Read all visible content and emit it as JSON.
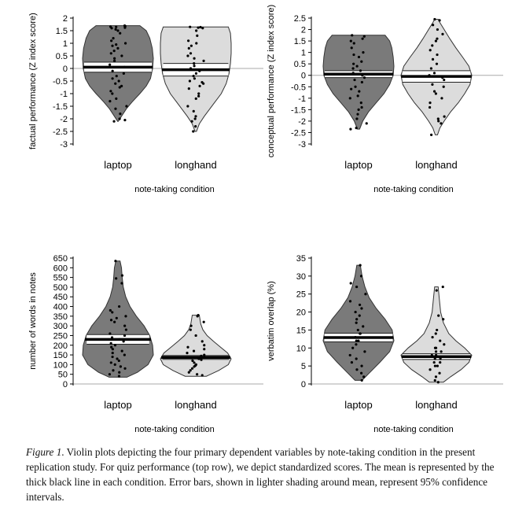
{
  "chart_data": [
    {
      "type": "violin",
      "title": "",
      "xlabel": "note-taking condition",
      "ylabel": "factual performance (Z index score)",
      "ylim": [
        -3,
        2
      ],
      "yticks": [
        -3,
        -2.5,
        -2,
        -1.5,
        -1,
        -0.5,
        0,
        0.5,
        1,
        1.5,
        2
      ],
      "ytick_labels": [
        "-3",
        "-2.5",
        "-2",
        "-1.5",
        "-1",
        "-0.5",
        "0",
        "0.5",
        "1",
        "1.5",
        "2"
      ],
      "reference_line": 0,
      "categories": [
        "laptop",
        "longhand"
      ],
      "series": [
        {
          "name": "laptop",
          "color": "#7a7a7a",
          "min": -2.1,
          "max": 1.7,
          "mean": 0.05,
          "ci": [
            -0.15,
            0.25
          ],
          "profile": [
            [
              -2.1,
              0.01
            ],
            [
              -1.9,
              0.1
            ],
            [
              -1.6,
              0.24
            ],
            [
              -1.3,
              0.42
            ],
            [
              -1.0,
              0.62
            ],
            [
              -0.7,
              0.8
            ],
            [
              -0.4,
              0.92
            ],
            [
              0.0,
              0.98
            ],
            [
              0.4,
              1.0
            ],
            [
              0.8,
              0.97
            ],
            [
              1.2,
              0.9
            ],
            [
              1.5,
              0.8
            ],
            [
              1.7,
              0.62
            ]
          ],
          "points": [
            1.7,
            1.68,
            1.66,
            1.65,
            1.62,
            1.6,
            1.55,
            1.5,
            1.4,
            1.2,
            1.1,
            1.0,
            0.95,
            0.9,
            0.8,
            0.7,
            0.6,
            0.5,
            0.4,
            0.3,
            0.15,
            0.05,
            -0.1,
            -0.2,
            -0.3,
            -0.4,
            -0.5,
            -0.6,
            -0.7,
            -0.75,
            -0.9,
            -1.0,
            -1.2,
            -1.3,
            -1.5,
            -1.6,
            -1.8,
            -2.0,
            -2.05,
            -2.1
          ]
        },
        {
          "name": "longhand",
          "color": "#dcdcdc",
          "min": -2.5,
          "max": 1.65,
          "mean": -0.05,
          "ci": [
            -0.3,
            0.2
          ],
          "profile": [
            [
              -2.5,
              0.02
            ],
            [
              -2.2,
              0.1
            ],
            [
              -1.9,
              0.24
            ],
            [
              -1.6,
              0.4
            ],
            [
              -1.3,
              0.56
            ],
            [
              -1.0,
              0.72
            ],
            [
              -0.6,
              0.86
            ],
            [
              -0.2,
              0.94
            ],
            [
              0.2,
              0.98
            ],
            [
              0.6,
              1.0
            ],
            [
              1.0,
              1.0
            ],
            [
              1.4,
              0.98
            ],
            [
              1.65,
              0.92
            ]
          ],
          "points": [
            1.65,
            1.64,
            1.62,
            1.6,
            1.5,
            1.3,
            1.1,
            1.0,
            0.9,
            0.8,
            0.6,
            0.5,
            0.4,
            0.3,
            0.2,
            0.1,
            0.0,
            -0.1,
            -0.2,
            -0.3,
            -0.4,
            -0.5,
            -0.55,
            -0.6,
            -0.7,
            -0.8,
            -1.0,
            -1.1,
            -1.2,
            -1.5,
            -1.7,
            -1.9,
            -2.0,
            -2.1,
            -2.3,
            -2.5
          ]
        }
      ]
    },
    {
      "type": "violin",
      "title": "",
      "xlabel": "note-taking condition",
      "ylabel": "conceptual performance (Z index score)",
      "ylim": [
        -3,
        2.5
      ],
      "yticks": [
        -3,
        -2.5,
        -2,
        -1.5,
        -1,
        -0.5,
        0,
        0.5,
        1,
        1.5,
        2,
        2.5
      ],
      "ytick_labels": [
        "-3",
        "-2.5",
        "-2",
        "-1.5",
        "-1",
        "-0.5",
        "0",
        "0.5",
        "1",
        "1.5",
        "2",
        "2.5"
      ],
      "reference_line": 0,
      "categories": [
        "laptop",
        "longhand"
      ],
      "series": [
        {
          "name": "laptop",
          "color": "#7a7a7a",
          "min": -2.35,
          "max": 1.75,
          "mean": 0.05,
          "ci": [
            -0.1,
            0.2
          ],
          "profile": [
            [
              -2.35,
              0.03
            ],
            [
              -2.0,
              0.12
            ],
            [
              -1.6,
              0.28
            ],
            [
              -1.2,
              0.5
            ],
            [
              -0.8,
              0.72
            ],
            [
              -0.4,
              0.88
            ],
            [
              0.0,
              0.98
            ],
            [
              0.4,
              1.0
            ],
            [
              0.8,
              0.98
            ],
            [
              1.2,
              0.94
            ],
            [
              1.5,
              0.88
            ],
            [
              1.75,
              0.75
            ]
          ],
          "points": [
            1.75,
            1.7,
            1.6,
            1.5,
            1.4,
            1.2,
            1.0,
            0.9,
            0.8,
            0.6,
            0.5,
            0.4,
            0.3,
            0.2,
            0.1,
            0.0,
            -0.1,
            -0.2,
            -0.3,
            -0.5,
            -0.6,
            -0.7,
            -0.9,
            -1.0,
            -1.2,
            -1.4,
            -1.5,
            -1.7,
            -1.9,
            -2.1,
            -2.3,
            -2.35
          ]
        },
        {
          "name": "longhand",
          "color": "#dcdcdc",
          "min": -2.6,
          "max": 2.45,
          "mean": -0.05,
          "ci": [
            -0.3,
            0.2
          ],
          "profile": [
            [
              -2.6,
              0.03
            ],
            [
              -2.3,
              0.1
            ],
            [
              -2.0,
              0.22
            ],
            [
              -1.6,
              0.4
            ],
            [
              -1.2,
              0.62
            ],
            [
              -0.8,
              0.8
            ],
            [
              -0.4,
              0.95
            ],
            [
              0.0,
              1.0
            ],
            [
              0.4,
              0.92
            ],
            [
              0.8,
              0.74
            ],
            [
              1.2,
              0.55
            ],
            [
              1.6,
              0.38
            ],
            [
              2.0,
              0.22
            ],
            [
              2.3,
              0.1
            ],
            [
              2.45,
              0.05
            ]
          ],
          "points": [
            2.45,
            2.4,
            2.2,
            2.0,
            1.8,
            1.6,
            1.5,
            1.3,
            1.1,
            0.9,
            0.7,
            0.5,
            0.3,
            0.1,
            0.0,
            -0.1,
            -0.2,
            -0.4,
            -0.5,
            -0.7,
            -0.8,
            -1.0,
            -1.2,
            -1.4,
            -1.8,
            -1.9,
            -2.0,
            -2.1,
            -2.6
          ]
        }
      ]
    },
    {
      "type": "violin",
      "title": "",
      "xlabel": "note-taking condition",
      "ylabel": "number of words in notes",
      "ylim": [
        0,
        650
      ],
      "yticks": [
        0,
        50,
        100,
        150,
        200,
        250,
        300,
        350,
        400,
        450,
        500,
        550,
        600,
        650
      ],
      "ytick_labels": [
        "0",
        "50",
        "100",
        "150",
        "200",
        "250",
        "300",
        "350",
        "400",
        "450",
        "500",
        "550",
        "600",
        "650"
      ],
      "reference_line": 0,
      "categories": [
        "laptop",
        "longhand"
      ],
      "series": [
        {
          "name": "laptop",
          "color": "#7a7a7a",
          "min": 35,
          "max": 635,
          "mean": 230,
          "ci": [
            205,
            255
          ],
          "profile": [
            [
              35,
              0.25
            ],
            [
              60,
              0.55
            ],
            [
              100,
              0.85
            ],
            [
              150,
              1.0
            ],
            [
              200,
              0.98
            ],
            [
              250,
              0.9
            ],
            [
              300,
              0.74
            ],
            [
              350,
              0.52
            ],
            [
              400,
              0.34
            ],
            [
              450,
              0.22
            ],
            [
              500,
              0.15
            ],
            [
              550,
              0.12
            ],
            [
              600,
              0.1
            ],
            [
              635,
              0.06
            ]
          ],
          "points": [
            635,
            560,
            545,
            520,
            400,
            380,
            370,
            350,
            340,
            330,
            320,
            300,
            280,
            260,
            250,
            240,
            230,
            220,
            210,
            200,
            190,
            180,
            170,
            160,
            150,
            140,
            130,
            120,
            110,
            100,
            90,
            80,
            70,
            60,
            50,
            40
          ]
        },
        {
          "name": "longhand",
          "color": "#dcdcdc",
          "min": 40,
          "max": 355,
          "mean": 137,
          "ci": [
            127,
            147
          ],
          "profile": [
            [
              40,
              0.3
            ],
            [
              70,
              0.65
            ],
            [
              100,
              0.92
            ],
            [
              130,
              1.0
            ],
            [
              160,
              0.9
            ],
            [
              190,
              0.7
            ],
            [
              220,
              0.5
            ],
            [
              250,
              0.32
            ],
            [
              280,
              0.2
            ],
            [
              310,
              0.14
            ],
            [
              355,
              0.1
            ]
          ],
          "points": [
            355,
            350,
            320,
            300,
            280,
            250,
            220,
            200,
            190,
            180,
            170,
            160,
            150,
            145,
            140,
            135,
            130,
            125,
            120,
            110,
            100,
            95,
            90,
            80,
            70,
            60,
            50,
            45
          ]
        }
      ]
    },
    {
      "type": "violin",
      "title": "",
      "xlabel": "note-taking condition",
      "ylabel": "verbatim overlap (%)",
      "ylim": [
        0,
        35
      ],
      "yticks": [
        0,
        5,
        10,
        15,
        20,
        25,
        30,
        35
      ],
      "ytick_labels": [
        "0",
        "5",
        "10",
        "15",
        "20",
        "25",
        "30",
        "35"
      ],
      "reference_line": 0,
      "categories": [
        "laptop",
        "longhand"
      ],
      "series": [
        {
          "name": "laptop",
          "color": "#7a7a7a",
          "min": 1,
          "max": 33,
          "mean": 12.9,
          "ci": [
            11.7,
            14.1
          ],
          "profile": [
            [
              1,
              0.1
            ],
            [
              3,
              0.3
            ],
            [
              6,
              0.6
            ],
            [
              9,
              0.88
            ],
            [
              12,
              1.0
            ],
            [
              15,
              0.95
            ],
            [
              18,
              0.75
            ],
            [
              21,
              0.5
            ],
            [
              24,
              0.3
            ],
            [
              27,
              0.18
            ],
            [
              30,
              0.1
            ],
            [
              33,
              0.05
            ]
          ],
          "points": [
            33,
            30,
            28,
            27,
            25,
            23,
            22,
            21,
            20,
            19,
            18,
            17,
            16,
            15,
            14,
            14,
            13,
            12,
            12,
            11,
            10,
            9,
            8,
            7,
            6,
            5,
            4,
            3,
            2,
            1
          ]
        },
        {
          "name": "longhand",
          "color": "#dcdcdc",
          "min": 0.5,
          "max": 27,
          "mean": 7.6,
          "ci": [
            6.8,
            8.4
          ],
          "profile": [
            [
              0.5,
              0.2
            ],
            [
              2,
              0.4
            ],
            [
              4,
              0.7
            ],
            [
              6,
              0.92
            ],
            [
              8,
              1.0
            ],
            [
              10,
              0.8
            ],
            [
              12,
              0.55
            ],
            [
              14,
              0.35
            ],
            [
              17,
              0.2
            ],
            [
              20,
              0.12
            ],
            [
              24,
              0.08
            ],
            [
              27,
              0.05
            ]
          ],
          "points": [
            27,
            26,
            19,
            18,
            15,
            14,
            13,
            12,
            11,
            10,
            10,
            9,
            9,
            8,
            8,
            7,
            7,
            6,
            6,
            5,
            5,
            4,
            3,
            2,
            1,
            0.5
          ]
        }
      ]
    }
  ],
  "caption": {
    "label": "Figure 1",
    "text": ". Violin plots depicting the four primary dependent variables by note-taking condition in the present replication study. For quiz performance (top row), we depict standardized scores. The mean is represented by the thick black line in each condition. Error bars, shown in lighter shading around mean, represent 95% confidence intervals."
  }
}
